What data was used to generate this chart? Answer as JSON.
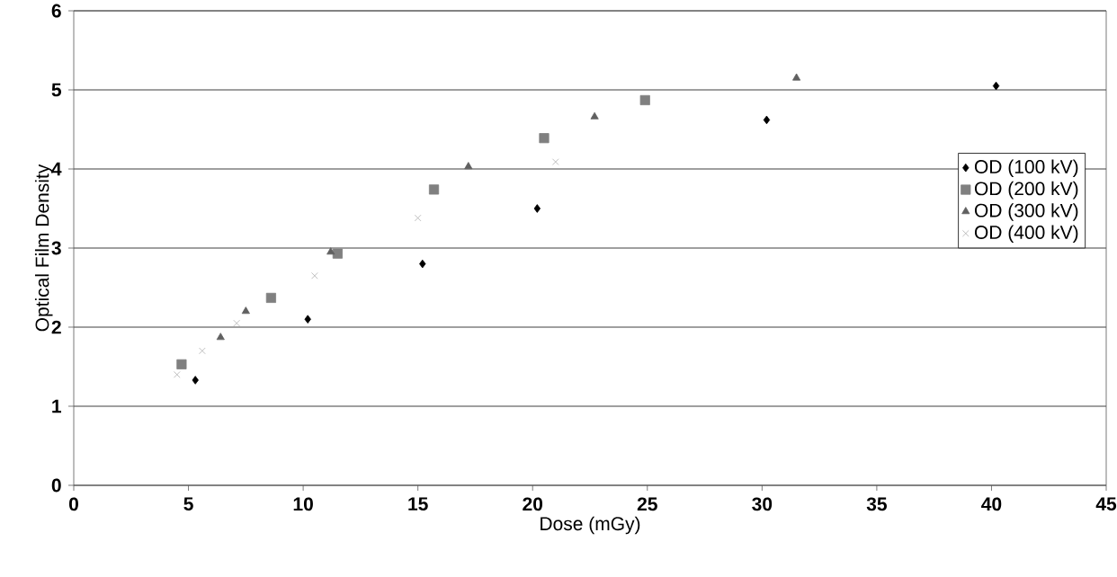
{
  "chart_data": {
    "type": "scatter",
    "xlabel": "Dose (mGy)",
    "ylabel": "Optical Film Density",
    "xlim": [
      0,
      45
    ],
    "xticks": [
      0,
      5,
      10,
      15,
      20,
      25,
      30,
      35,
      40,
      45
    ],
    "ylim": [
      0,
      6
    ],
    "yticks": [
      0,
      1,
      2,
      3,
      4,
      5,
      6
    ],
    "grid": "y",
    "legend": "right",
    "series": [
      {
        "name": "OD (100 kV)",
        "color": "#000000",
        "marker": "diamond",
        "x": [
          5.3,
          10.2,
          15.2,
          20.2,
          30.2,
          40.2
        ],
        "values": [
          1.33,
          2.1,
          2.8,
          3.5,
          4.62,
          5.05
        ]
      },
      {
        "name": "OD (200 kV)",
        "color": "#808080",
        "marker": "square",
        "x": [
          4.7,
          8.6,
          11.5,
          15.7,
          20.5,
          24.9
        ],
        "values": [
          1.53,
          2.37,
          2.93,
          3.74,
          4.39,
          4.87
        ]
      },
      {
        "name": "OD (300 kV)",
        "color": "#606060",
        "marker": "triangle",
        "x": [
          6.4,
          7.5,
          11.2,
          17.2,
          22.7,
          31.5
        ],
        "values": [
          1.87,
          2.2,
          2.95,
          4.03,
          4.66,
          5.15
        ]
      },
      {
        "name": "OD (400 kV)",
        "color": "#b0b0b0",
        "marker": "cross",
        "x": [
          4.5,
          5.6,
          7.1,
          10.5,
          15.0,
          21.0
        ],
        "values": [
          1.4,
          1.7,
          2.05,
          2.65,
          3.38,
          4.09
        ]
      }
    ]
  }
}
